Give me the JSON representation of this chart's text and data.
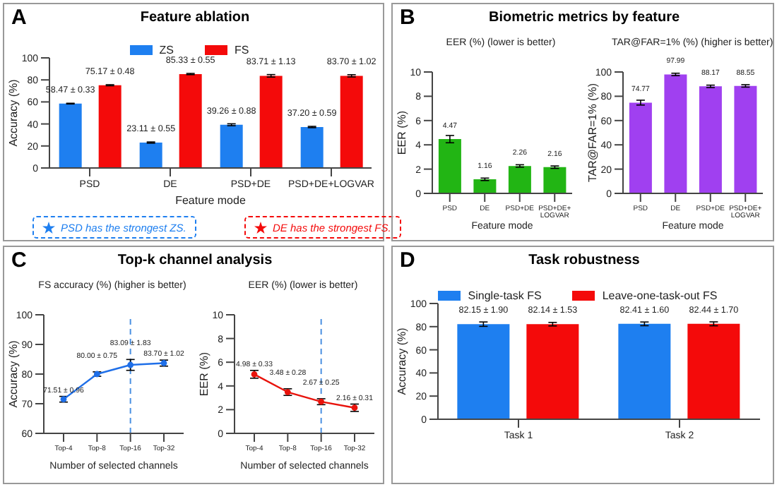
{
  "chart_data": [
    {
      "type": "bar",
      "title": "Feature ablation",
      "xlabel": "Feature mode",
      "ylabel": "Accuracy (%)",
      "categories": [
        "PSD",
        "DE",
        "PSD+DE",
        "PSD+DE+LOGVAR"
      ],
      "series": [
        {
          "name": "ZS",
          "color": "#1e7ff0",
          "values": [
            58.47,
            23.11,
            39.26,
            37.2
          ],
          "errors": [
            0.33,
            0.55,
            0.88,
            0.59
          ],
          "value_labels": [
            "58.47 ± 0.33",
            "23.11 ± 0.55",
            "39.26 ± 0.88",
            "37.20 ± 0.59"
          ]
        },
        {
          "name": "FS",
          "color": "#f40a0a",
          "values": [
            75.17,
            85.33,
            83.71,
            83.7
          ],
          "errors": [
            0.48,
            0.55,
            1.13,
            1.02
          ],
          "value_labels": [
            "75.17 ± 0.48",
            "85.33 ± 0.55",
            "83.71 ± 1.13",
            "83.70 ± 1.02"
          ]
        }
      ],
      "ylim": [
        0,
        100
      ],
      "yticks": [
        0,
        20,
        40,
        60,
        80,
        100
      ],
      "legend": "top",
      "grid": false,
      "annotations": [
        "A",
        "PSD has the strongest ZS.",
        "DE has the strongest FS."
      ]
    },
    {
      "type": "bar",
      "title": "Biometric metrics by feature",
      "subtitle": "EER (%) (lower is better)",
      "xlabel": "Feature mode",
      "ylabel": "EER (%)",
      "categories": [
        "PSD",
        "DE",
        "PSD+DE",
        "PSD+DE+LOGVAR"
      ],
      "values": [
        4.47,
        1.16,
        2.26,
        2.16
      ],
      "errors": [
        0.3,
        0.1,
        0.1,
        0.1
      ],
      "color": "#22b514",
      "data_labels": true,
      "ylim": [
        0,
        10
      ],
      "yticks": [
        0,
        2,
        4,
        6,
        8,
        10
      ],
      "grid": false,
      "annotations": [
        "B"
      ]
    },
    {
      "type": "bar",
      "subtitle": "TAR@FAR=1% (%) (higher is better)",
      "xlabel": "Feature mode",
      "ylabel": "TAR@FAR=1% (%)",
      "categories": [
        "PSD",
        "DE",
        "PSD+DE",
        "PSD+DE+LOGVAR"
      ],
      "values": [
        74.77,
        97.99,
        88.17,
        88.55
      ],
      "errors": [
        2,
        1,
        1,
        1
      ],
      "color": "#a040f0",
      "data_labels": true,
      "ylim": [
        0,
        100
      ],
      "yticks": [
        0,
        20,
        40,
        60,
        80,
        100
      ],
      "grid": false
    },
    {
      "type": "line",
      "title": "Top-k channel analysis",
      "subtitle": "FS accuracy (%) (higher is better)",
      "xlabel": "Number of selected channels",
      "ylabel": "Accuracy (%)",
      "categories": [
        "Top-4",
        "Top-8",
        "Top-16",
        "Top-32"
      ],
      "values": [
        71.51,
        80.0,
        83.09,
        83.7
      ],
      "errors": [
        0.96,
        0.75,
        1.83,
        1.02
      ],
      "value_labels": [
        "71.51 ± 0.96",
        "80.00 ± 0.75",
        "83.09 ± 1.83",
        "83.70 ± 1.02"
      ],
      "color": "#1f6fe8",
      "marker": "circle",
      "line_style": "solid",
      "ylim": [
        60,
        100
      ],
      "yticks": [
        60,
        70,
        80,
        90,
        100
      ],
      "grid": false,
      "ref_lines": [
        {
          "axis": "x",
          "value": "Top-16",
          "color": "#4a90e2",
          "line_style": "dashed"
        }
      ],
      "annotations": [
        "C"
      ]
    },
    {
      "type": "line",
      "subtitle": "EER (%) (lower is better)",
      "xlabel": "Number of selected channels",
      "ylabel": "EER (%)",
      "categories": [
        "Top-4",
        "Top-8",
        "Top-16",
        "Top-32"
      ],
      "values": [
        4.98,
        3.48,
        2.67,
        2.16
      ],
      "errors": [
        0.33,
        0.28,
        0.25,
        0.31
      ],
      "value_labels": [
        "4.98 ± 0.33",
        "3.48 ± 0.28",
        "2.67 ± 0.25",
        "2.16 ± 0.31"
      ],
      "color": "#e8130c",
      "marker": "circle",
      "line_style": "solid",
      "ylim": [
        0,
        10
      ],
      "yticks": [
        0,
        2,
        4,
        6,
        8,
        10
      ],
      "grid": false,
      "ref_lines": [
        {
          "axis": "x",
          "value": "Top-16",
          "color": "#4a90e2",
          "line_style": "dashed"
        }
      ]
    },
    {
      "type": "bar",
      "title": "Task robustness",
      "ylabel": "Accuracy (%)",
      "categories": [
        "Task 1",
        "Task 2"
      ],
      "series": [
        {
          "name": "Single-task FS",
          "color": "#1e7ff0",
          "values": [
            82.15,
            82.41
          ],
          "errors": [
            1.9,
            1.6
          ],
          "value_labels": [
            "82.15 ± 1.90",
            "82.41 ± 1.60"
          ]
        },
        {
          "name": "Leave-one-task-out FS",
          "color": "#f40a0a",
          "values": [
            82.14,
            82.44
          ],
          "errors": [
            1.53,
            1.7
          ],
          "value_labels": [
            "82.14 ± 1.53",
            "82.44 ± 1.70"
          ]
        }
      ],
      "ylim": [
        0,
        100
      ],
      "yticks": [
        0,
        20,
        40,
        60,
        80,
        100
      ],
      "legend": "top",
      "grid": false,
      "annotations": [
        "D"
      ]
    }
  ]
}
